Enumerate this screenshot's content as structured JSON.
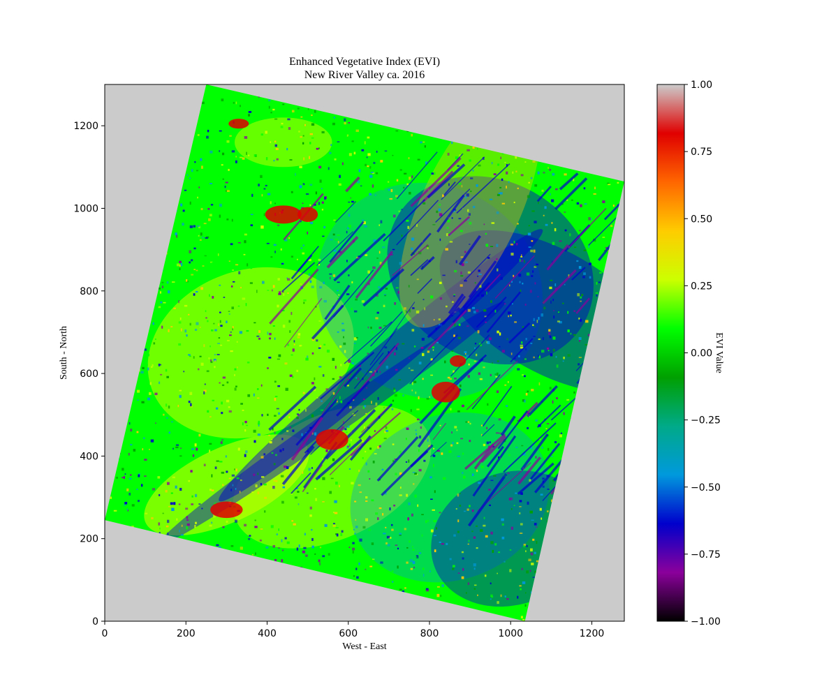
{
  "chart_data": {
    "type": "heatmap",
    "title": "Enhanced Vegetative Index (EVI)",
    "subtitle": "New River Valley ca. 2016",
    "xlabel": "West - East",
    "ylabel": "South - North",
    "xlim": [
      0,
      1280
    ],
    "ylim": [
      0,
      1300
    ],
    "xticks": [
      0,
      200,
      400,
      600,
      800,
      1000,
      1200
    ],
    "yticks": [
      0,
      200,
      400,
      600,
      800,
      1000,
      1200
    ],
    "xtick_labels": [
      "0",
      "200",
      "400",
      "600",
      "800",
      "1000",
      "1200"
    ],
    "ytick_labels": [
      "0",
      "200",
      "400",
      "600",
      "800",
      "1000",
      "1200"
    ],
    "background_color": "#cbcbcb",
    "scene_corners": [
      [
        250,
        1300
      ],
      [
        1280,
        1065
      ],
      [
        1035,
        0
      ],
      [
        0,
        245
      ]
    ],
    "grid": false,
    "colorbar": {
      "label": "EVI Value",
      "range": [
        -1.0,
        1.0
      ],
      "ticks": [
        1.0,
        0.75,
        0.5,
        0.25,
        0.0,
        -0.25,
        -0.5,
        -0.75,
        -1.0
      ],
      "tick_labels": [
        "1.00",
        "0.75",
        "0.50",
        "0.25",
        "0.00",
        "−0.25",
        "−0.50",
        "−0.75",
        "−1.00"
      ],
      "colormap": "nipy_spectral",
      "colors": [
        "#000000",
        "#8b009b",
        "#0000cc",
        "#0099dd",
        "#00aa88",
        "#00a000",
        "#00ff00",
        "#ccff00",
        "#ffcc00",
        "#ff6600",
        "#e00000",
        "#cccccc"
      ]
    }
  }
}
